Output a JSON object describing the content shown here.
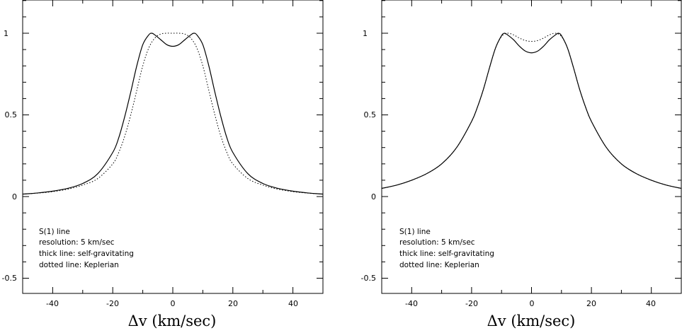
{
  "chart_data": [
    {
      "type": "line",
      "title": "",
      "xlabel": "Δv (km/sec)",
      "ylabel": "",
      "xlim": [
        -50,
        50
      ],
      "ylim": [
        -0.6,
        1.2
      ],
      "xticks": [
        -40,
        -20,
        0,
        20,
        40
      ],
      "xtick_labels": [
        "-40",
        "-20",
        "0",
        "20",
        "40"
      ],
      "yticks": [
        -0.5,
        0,
        0.5,
        1
      ],
      "ytick_labels": [
        "-0.5",
        "0",
        "0.5",
        "1"
      ],
      "grid": false,
      "annotation": [
        "S(1) line",
        "resolution: 5 km/sec",
        "thick line: self-gravitating",
        "dotted line: Keplerian"
      ],
      "series": [
        {
          "style": "solid",
          "x": [
            -50,
            -45,
            -40,
            -35,
            -30,
            -25,
            -20,
            -18,
            -16,
            -14,
            -12,
            -10,
            -8,
            -7,
            -6,
            -4,
            -2,
            0,
            2,
            4,
            6,
            7,
            8,
            10,
            12,
            14,
            16,
            18,
            20,
            25,
            30,
            35,
            40,
            45,
            50
          ],
          "y": [
            0.015,
            0.022,
            0.033,
            0.05,
            0.08,
            0.14,
            0.27,
            0.36,
            0.49,
            0.64,
            0.8,
            0.93,
            0.99,
            1.0,
            0.99,
            0.96,
            0.93,
            0.92,
            0.93,
            0.96,
            0.99,
            1.0,
            0.99,
            0.93,
            0.8,
            0.64,
            0.49,
            0.36,
            0.27,
            0.14,
            0.08,
            0.05,
            0.033,
            0.022,
            0.015
          ]
        },
        {
          "style": "dotted",
          "x": [
            -50,
            -45,
            -40,
            -35,
            -30,
            -25,
            -20,
            -18,
            -16,
            -14,
            -12,
            -10,
            -8,
            -6,
            -4,
            -2,
            0,
            2,
            4,
            6,
            8,
            10,
            12,
            14,
            16,
            18,
            20,
            25,
            30,
            35,
            40,
            45,
            50
          ],
          "y": [
            0.015,
            0.021,
            0.03,
            0.045,
            0.07,
            0.11,
            0.2,
            0.27,
            0.37,
            0.5,
            0.65,
            0.8,
            0.91,
            0.97,
            0.995,
            1.0,
            1.0,
            1.0,
            0.995,
            0.97,
            0.91,
            0.8,
            0.65,
            0.5,
            0.37,
            0.27,
            0.2,
            0.11,
            0.07,
            0.045,
            0.03,
            0.021,
            0.015
          ]
        }
      ]
    },
    {
      "type": "line",
      "title": "",
      "xlabel": "Δv (km/sec)",
      "ylabel": "",
      "xlim": [
        -50,
        50
      ],
      "ylim": [
        -0.6,
        1.2
      ],
      "xticks": [
        -40,
        -20,
        0,
        20,
        40
      ],
      "xtick_labels": [
        "-40",
        "-20",
        "0",
        "20",
        "40"
      ],
      "yticks": [
        -0.5,
        0,
        0.5,
        1
      ],
      "ytick_labels": [
        "-0.5",
        "0",
        "0.5",
        "1"
      ],
      "grid": false,
      "annotation": [
        "S(1) line",
        "resolution: 5 km/sec",
        "thick line: self-gravitating",
        "dotted line: Keplerian"
      ],
      "series": [
        {
          "style": "solid",
          "x": [
            -50,
            -45,
            -40,
            -35,
            -30,
            -25,
            -20,
            -18,
            -16,
            -14,
            -12,
            -10,
            -9,
            -8,
            -6,
            -4,
            -2,
            0,
            2,
            4,
            6,
            8,
            9,
            10,
            12,
            14,
            16,
            18,
            20,
            25,
            30,
            35,
            40,
            45,
            50
          ],
          "y": [
            0.05,
            0.07,
            0.1,
            0.14,
            0.2,
            0.3,
            0.46,
            0.55,
            0.66,
            0.79,
            0.91,
            0.985,
            1.0,
            0.99,
            0.96,
            0.92,
            0.89,
            0.88,
            0.89,
            0.92,
            0.96,
            0.99,
            1.0,
            0.985,
            0.91,
            0.79,
            0.66,
            0.55,
            0.46,
            0.3,
            0.2,
            0.14,
            0.1,
            0.07,
            0.05
          ]
        },
        {
          "style": "dotted",
          "x": [
            -50,
            -45,
            -40,
            -35,
            -30,
            -25,
            -20,
            -18,
            -16,
            -14,
            -12,
            -10,
            -8,
            -6,
            -4,
            -2,
            0,
            2,
            4,
            6,
            8,
            10,
            12,
            14,
            16,
            18,
            20,
            25,
            30,
            35,
            40,
            45,
            50
          ],
          "y": [
            0.05,
            0.07,
            0.1,
            0.14,
            0.2,
            0.3,
            0.46,
            0.55,
            0.66,
            0.79,
            0.91,
            0.98,
            1.0,
            0.99,
            0.97,
            0.955,
            0.95,
            0.955,
            0.97,
            0.99,
            1.0,
            0.98,
            0.91,
            0.79,
            0.66,
            0.55,
            0.46,
            0.3,
            0.2,
            0.14,
            0.1,
            0.07,
            0.05
          ]
        }
      ]
    }
  ]
}
